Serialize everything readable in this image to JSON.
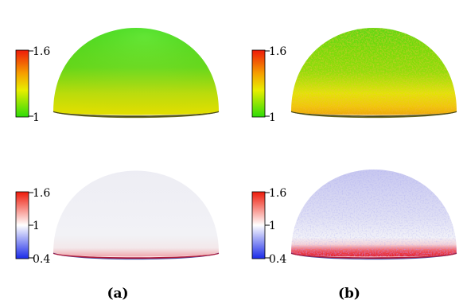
{
  "figure": {
    "panels": [
      {
        "id": "a",
        "caption": "(a)"
      },
      {
        "id": "b",
        "caption": "(b)"
      }
    ],
    "colorbars": {
      "top": {
        "max_label": "1.6",
        "min_label": "1",
        "colormap": "green-yellow-red"
      },
      "bottom": {
        "max_label": "1.6",
        "mid_label": "1",
        "min_label": "0.4",
        "colormap": "blue-white-red"
      }
    },
    "colors": {
      "green": "#3edc10",
      "yellow": "#f0ee00",
      "red": "#ee1a0a",
      "blue": "#1a2ae8",
      "white": "#ffffff",
      "dome_rim": "#333333"
    }
  }
}
